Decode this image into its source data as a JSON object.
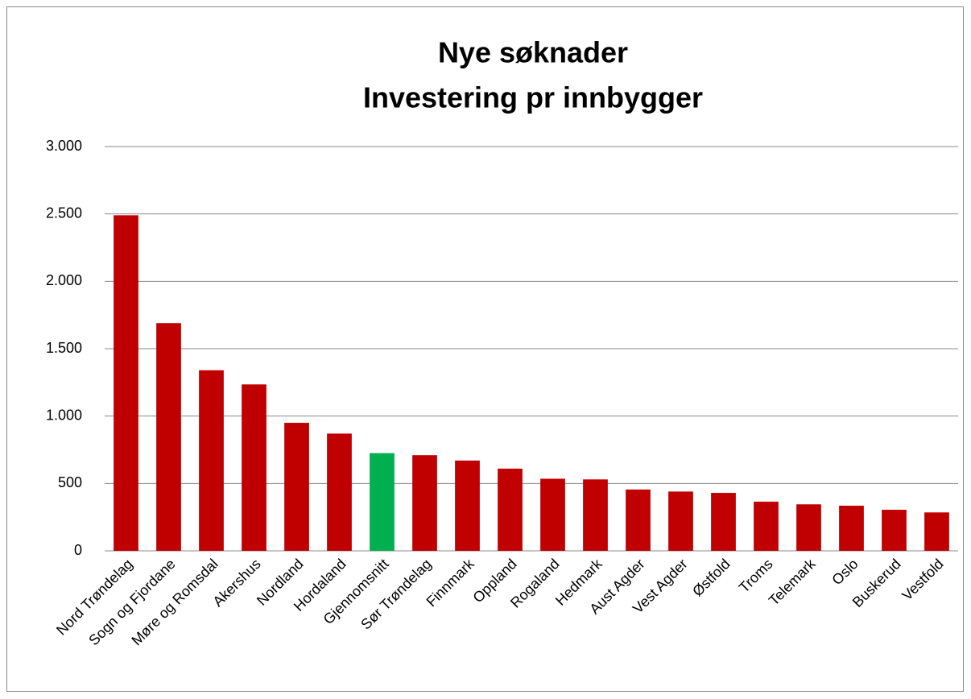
{
  "chart_data": {
    "type": "bar",
    "title": [
      "Nye søknader",
      "Investering pr innbygger"
    ],
    "categories": [
      "Nord Trøndelag",
      "Sogn og Fjordane",
      "Møre og Romsdal",
      "Akershus",
      "Nordland",
      "Hordaland",
      "Gjennomsnitt",
      "Sør Trøndelag",
      "Finnmark",
      "Oppland",
      "Rogaland",
      "Hedmark",
      "Aust Agder",
      "Vest Agder",
      "Østfold",
      "Troms",
      "Telemark",
      "Oslo",
      "Buskerud",
      "Vestfold"
    ],
    "values": [
      2490,
      1690,
      1340,
      1235,
      950,
      870,
      725,
      710,
      670,
      610,
      535,
      530,
      455,
      440,
      430,
      365,
      345,
      335,
      305,
      285
    ],
    "colors": [
      "#c00000",
      "#c00000",
      "#c00000",
      "#c00000",
      "#c00000",
      "#c00000",
      "#00b050",
      "#c00000",
      "#c00000",
      "#c00000",
      "#c00000",
      "#c00000",
      "#c00000",
      "#c00000",
      "#c00000",
      "#c00000",
      "#c00000",
      "#c00000",
      "#c00000",
      "#c00000"
    ],
    "ylim": [
      0,
      3000
    ],
    "yticks": [
      0,
      500,
      {
        "value": 1000,
        "label": "1.000"
      },
      {
        "value": 1500,
        "label": "1.500"
      },
      {
        "value": 2000,
        "label": "2.000"
      },
      {
        "value": 2500,
        "label": "2.500"
      },
      {
        "value": 3000,
        "label": "3.000"
      }
    ],
    "grid": true
  }
}
